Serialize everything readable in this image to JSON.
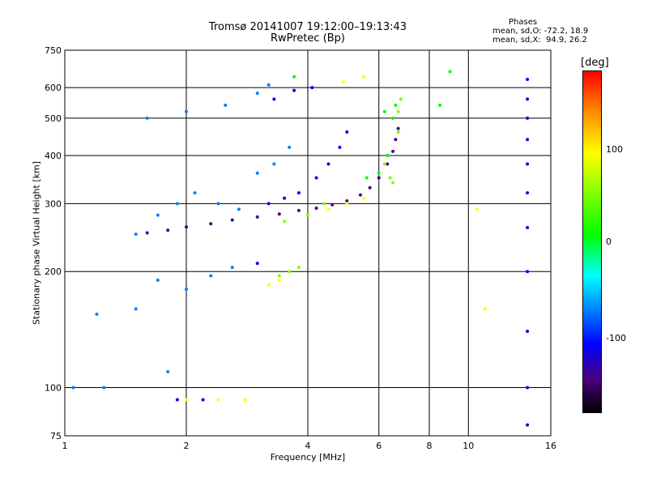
{
  "chart_data": {
    "type": "scatter",
    "title": "Tromsø 20141007 19:12:00–19:13:43",
    "subtitle": "RwPretec (Bp)",
    "xlabel": "Frequency [MHz]",
    "ylabel": "Stationary phase Virtual Height [km]",
    "x_scale": "log",
    "y_scale": "log",
    "xlim": [
      1,
      16
    ],
    "ylim": [
      75,
      750
    ],
    "x_ticks": [
      1,
      2,
      4,
      6,
      8,
      10,
      16
    ],
    "y_ticks": [
      75,
      100,
      200,
      300,
      400,
      500,
      600,
      750
    ],
    "grid": true,
    "phases_header": "Phases",
    "phases_o": "mean, sd,O: -72.2, 18.9",
    "phases_x": "mean, sd,X:  94.9, 26.2",
    "colorbar": {
      "unit": "[deg]",
      "ticks": [
        100,
        0,
        -100
      ],
      "range": [
        -180,
        180
      ],
      "colors": [
        "#ff0000",
        "#ff8c00",
        "#ffff00",
        "#7fff00",
        "#00ff00",
        "#00ffff",
        "#0080ff",
        "#0000ff",
        "#4b0082",
        "#000000"
      ]
    },
    "series": [
      {
        "phase": -120,
        "points": [
          [
            1.6,
            252
          ],
          [
            1.8,
            256
          ],
          [
            2.0,
            261
          ],
          [
            2.3,
            266
          ],
          [
            2.6,
            272
          ],
          [
            3.0,
            277
          ],
          [
            3.4,
            282
          ],
          [
            3.8,
            288
          ],
          [
            4.2,
            292
          ],
          [
            4.6,
            298
          ],
          [
            5.0,
            305
          ],
          [
            5.4,
            316
          ],
          [
            5.7,
            330
          ],
          [
            6.0,
            350
          ],
          [
            6.3,
            380
          ],
          [
            6.5,
            410
          ],
          [
            6.6,
            440
          ],
          [
            6.7,
            470
          ]
        ]
      },
      {
        "phase": -60,
        "points": [
          [
            1.5,
            250
          ],
          [
            1.7,
            280
          ],
          [
            1.9,
            300
          ],
          [
            2.1,
            320
          ],
          [
            2.4,
            300
          ],
          [
            2.7,
            290
          ],
          [
            3.0,
            360
          ],
          [
            3.3,
            380
          ],
          [
            3.6,
            420
          ],
          [
            1.7,
            190
          ],
          [
            2.0,
            180
          ],
          [
            2.3,
            195
          ],
          [
            2.6,
            205
          ],
          [
            1.6,
            500
          ],
          [
            2.0,
            520
          ],
          [
            2.5,
            540
          ],
          [
            3.0,
            580
          ],
          [
            3.2,
            610
          ],
          [
            1.2,
            155
          ],
          [
            1.5,
            160
          ],
          [
            1.05,
            100
          ],
          [
            1.25,
            100
          ],
          [
            1.8,
            110
          ]
        ]
      },
      {
        "phase": -100,
        "points": [
          [
            3.2,
            300
          ],
          [
            3.5,
            310
          ],
          [
            3.8,
            320
          ],
          [
            4.2,
            350
          ],
          [
            4.5,
            380
          ],
          [
            4.8,
            420
          ],
          [
            5.0,
            460
          ],
          [
            3.3,
            560
          ],
          [
            3.7,
            590
          ],
          [
            4.1,
            600
          ],
          [
            1.9,
            93
          ],
          [
            2.2,
            93
          ],
          [
            3.0,
            210
          ],
          [
            14,
            80
          ],
          [
            14,
            100
          ],
          [
            14,
            140
          ],
          [
            14,
            200
          ],
          [
            14,
            260
          ],
          [
            14,
            320
          ],
          [
            14,
            380
          ],
          [
            14,
            440
          ],
          [
            14,
            500
          ],
          [
            14,
            560
          ],
          [
            14,
            630
          ]
        ]
      },
      {
        "phase": 60,
        "points": [
          [
            6.2,
            380
          ],
          [
            6.4,
            350
          ],
          [
            6.5,
            340
          ],
          [
            6.7,
            460
          ],
          [
            6.7,
            520
          ],
          [
            6.8,
            560
          ],
          [
            3.4,
            195
          ],
          [
            3.6,
            200
          ],
          [
            3.8,
            205
          ],
          [
            3.5,
            270
          ],
          [
            4.0,
            280
          ],
          [
            4.4,
            300
          ]
        ]
      },
      {
        "phase": 120,
        "points": [
          [
            4.5,
            290
          ],
          [
            5.0,
            300
          ],
          [
            5.5,
            310
          ],
          [
            3.2,
            185
          ],
          [
            3.4,
            190
          ],
          [
            2.0,
            93
          ],
          [
            2.4,
            93
          ],
          [
            2.8,
            93
          ],
          [
            4.9,
            620
          ],
          [
            5.5,
            640
          ],
          [
            10.5,
            290
          ],
          [
            11,
            160
          ]
        ]
      },
      {
        "phase": 30,
        "points": [
          [
            5.6,
            350
          ],
          [
            6.0,
            360
          ],
          [
            6.3,
            400
          ],
          [
            6.5,
            500
          ],
          [
            6.6,
            540
          ],
          [
            3.7,
            640
          ],
          [
            6.2,
            520
          ],
          [
            8.5,
            540
          ],
          [
            9.0,
            660
          ]
        ]
      }
    ]
  }
}
